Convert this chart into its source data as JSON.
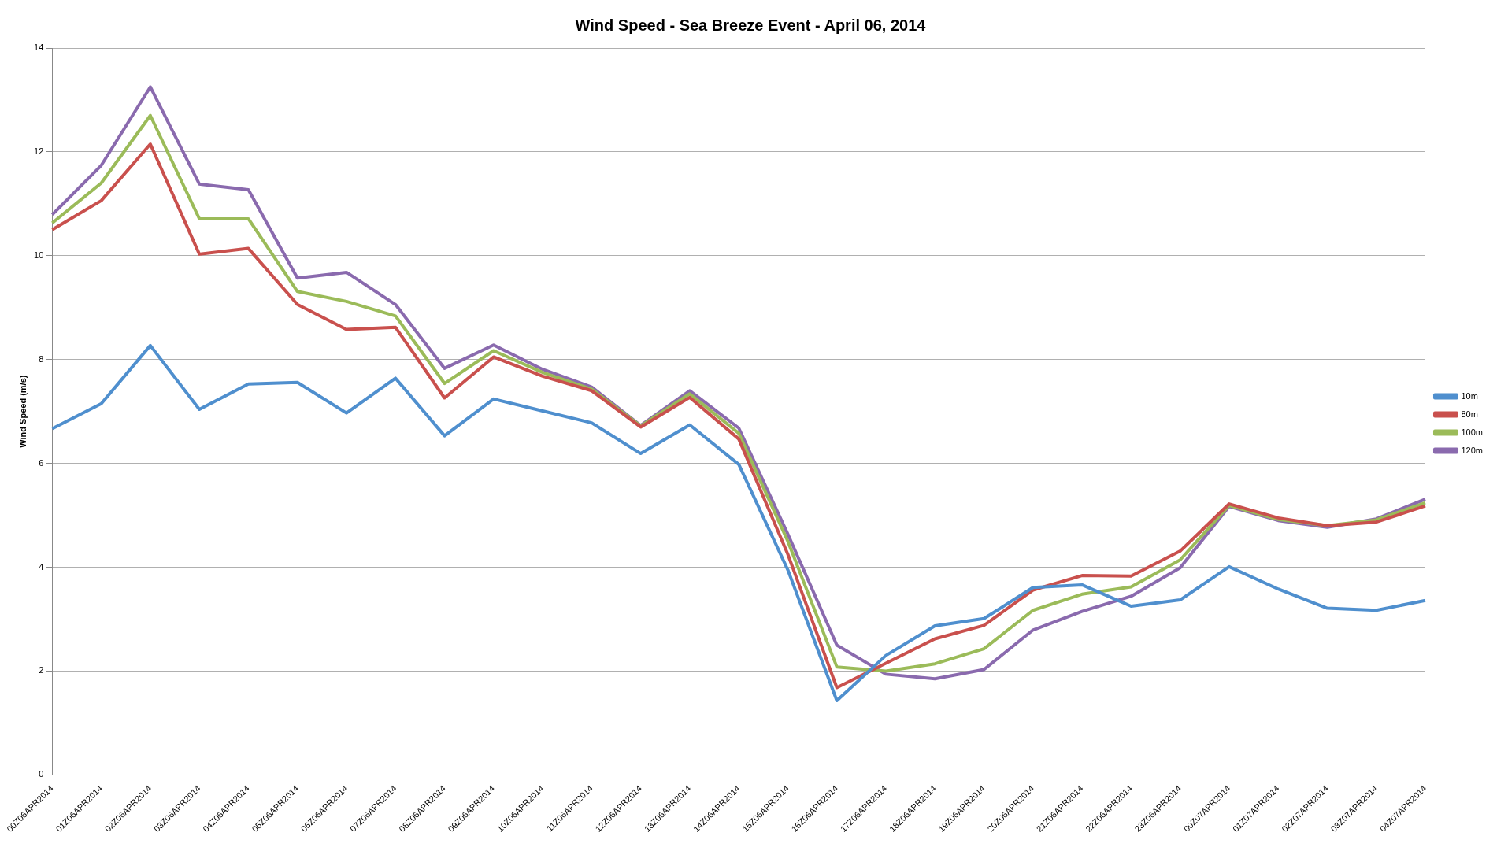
{
  "chart_data": {
    "type": "line",
    "title": "Wind Speed - Sea Breeze Event - April 06, 2014",
    "ylabel": "Wind Speed (m/s)",
    "categories": [
      "00Z06APR2014",
      "01Z06APR2014",
      "02Z06APR2014",
      "03Z06APR2014",
      "04Z06APR2014",
      "05Z06APR2014",
      "06Z06APR2014",
      "07Z06APR2014",
      "08Z06APR2014",
      "09Z06APR2014",
      "10Z06APR2014",
      "11Z06APR2014",
      "12Z06APR2014",
      "13Z06APR2014",
      "14Z06APR2014",
      "15Z06APR2014",
      "16Z06APR2014",
      "17Z06APR2014",
      "18Z06APR2014",
      "19Z06APR2014",
      "20Z06APR2014",
      "21Z06APR2014",
      "22Z06APR2014",
      "23Z06APR2014",
      "00Z07APR2014",
      "01Z07APR2014",
      "02Z07APR2014",
      "03Z07APR2014",
      "04Z07APR2014"
    ],
    "series": [
      {
        "name": "10m",
        "color": "#4f8fce",
        "values": [
          6.67,
          7.15,
          8.27,
          7.04,
          7.53,
          7.56,
          6.97,
          7.64,
          6.53,
          7.24,
          7.01,
          6.78,
          6.19,
          6.74,
          5.98,
          3.95,
          1.43,
          2.3,
          2.87,
          3.01,
          3.61,
          3.66,
          3.25,
          3.37,
          4.01,
          3.58,
          3.21,
          3.17,
          3.36
        ]
      },
      {
        "name": "80m",
        "color": "#c9504d",
        "values": [
          10.5,
          11.06,
          12.15,
          10.03,
          10.14,
          9.06,
          8.58,
          8.62,
          7.26,
          8.05,
          7.68,
          7.4,
          6.7,
          7.27,
          6.47,
          4.25,
          1.68,
          2.15,
          2.62,
          2.88,
          3.56,
          3.84,
          3.83,
          4.31,
          5.22,
          4.95,
          4.8,
          4.87,
          5.18
        ]
      },
      {
        "name": "100m",
        "color": "#9bbb59",
        "values": [
          10.63,
          11.4,
          12.7,
          10.71,
          10.71,
          9.31,
          9.12,
          8.84,
          7.54,
          8.17,
          7.75,
          7.43,
          6.72,
          7.34,
          6.58,
          4.5,
          2.08,
          2.0,
          2.14,
          2.43,
          3.17,
          3.48,
          3.62,
          4.14,
          5.19,
          4.92,
          4.8,
          4.91,
          5.24
        ]
      },
      {
        "name": "120m",
        "color": "#8a6aae",
        "values": [
          10.79,
          11.74,
          13.25,
          11.38,
          11.27,
          9.57,
          9.68,
          9.06,
          7.83,
          8.28,
          7.81,
          7.47,
          6.73,
          7.4,
          6.68,
          4.64,
          2.5,
          1.94,
          1.85,
          2.03,
          2.79,
          3.15,
          3.44,
          3.99,
          5.17,
          4.9,
          4.77,
          4.93,
          5.31
        ]
      }
    ],
    "ylim": [
      0,
      14
    ],
    "yticks": [
      0,
      2,
      4,
      6,
      8,
      10,
      12,
      14
    ],
    "grid": "y",
    "legend": "right",
    "marker": "none",
    "line_style": "solid"
  }
}
